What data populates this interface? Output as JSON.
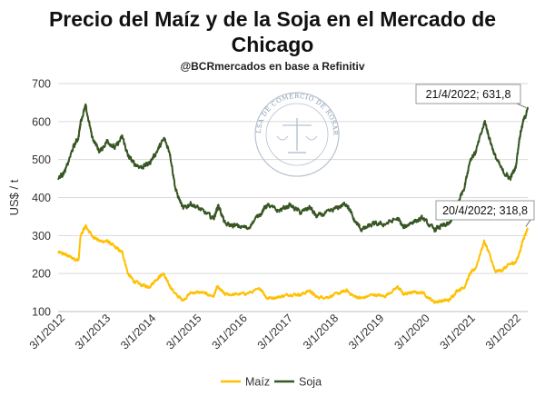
{
  "chart_data": {
    "type": "line",
    "title": "Precio del Maíz y de la Soja en el Mercado de Chicago",
    "title_lines": [
      "Precio del Maíz y de la Soja en el Mercado de",
      "Chicago"
    ],
    "subtitle": "@BCRmercados en base a Refinitiv",
    "ylabel": "US$ / t",
    "xlabel": "",
    "ylim": [
      100,
      700
    ],
    "yticks": [
      100,
      200,
      300,
      400,
      500,
      600,
      700
    ],
    "x_range": [
      "2012-01-03",
      "2022-04-21"
    ],
    "xticks": [
      "3/1/2012",
      "3/1/2013",
      "3/1/2014",
      "3/1/2015",
      "3/1/2016",
      "3/1/2017",
      "3/1/2018",
      "3/1/2019",
      "3/1/2020",
      "3/1/2021",
      "3/1/2022"
    ],
    "grid": "horizontal",
    "legend": "bottom",
    "watermark": "BOLSA DE COMERCIO DE ROSARIO",
    "series": [
      {
        "name": "Maíz",
        "color": "#FFC000",
        "x": [
          "2012-01-03",
          "2012-03-01",
          "2012-05-01",
          "2012-06-15",
          "2012-07-01",
          "2012-08-10",
          "2012-10-01",
          "2012-12-01",
          "2013-02-01",
          "2013-04-01",
          "2013-06-01",
          "2013-07-15",
          "2013-09-01",
          "2013-11-01",
          "2014-01-01",
          "2014-03-01",
          "2014-04-25",
          "2014-06-01",
          "2014-08-01",
          "2014-10-01",
          "2014-12-01",
          "2015-03-01",
          "2015-06-01",
          "2015-07-01",
          "2015-09-01",
          "2015-12-01",
          "2016-03-01",
          "2016-06-15",
          "2016-08-01",
          "2016-11-01",
          "2017-02-01",
          "2017-05-01",
          "2017-07-10",
          "2017-09-01",
          "2017-12-01",
          "2018-03-01",
          "2018-05-01",
          "2018-07-01",
          "2018-09-01",
          "2018-12-01",
          "2019-03-01",
          "2019-06-15",
          "2019-08-01",
          "2019-10-01",
          "2020-01-01",
          "2020-04-01",
          "2020-06-01",
          "2020-08-01",
          "2020-10-01",
          "2020-12-01",
          "2021-01-15",
          "2021-03-01",
          "2021-05-07",
          "2021-06-15",
          "2021-08-01",
          "2021-10-01",
          "2021-12-01",
          "2022-01-15",
          "2022-02-15",
          "2022-03-15",
          "2022-04-20"
        ],
        "values": [
          256,
          250,
          240,
          235,
          300,
          325,
          300,
          285,
          285,
          270,
          255,
          200,
          180,
          170,
          165,
          185,
          200,
          175,
          145,
          130,
          150,
          150,
          140,
          165,
          145,
          145,
          148,
          160,
          135,
          138,
          145,
          145,
          155,
          138,
          138,
          148,
          155,
          140,
          135,
          145,
          140,
          165,
          145,
          150,
          150,
          125,
          128,
          130,
          155,
          165,
          200,
          215,
          285,
          255,
          205,
          210,
          225,
          230,
          255,
          290,
          318.8
        ]
      },
      {
        "name": "Soja",
        "color": "#375623",
        "x": [
          "2012-01-03",
          "2012-03-01",
          "2012-05-01",
          "2012-06-15",
          "2012-07-01",
          "2012-08-10",
          "2012-10-01",
          "2012-12-01",
          "2013-02-01",
          "2013-04-01",
          "2013-06-01",
          "2013-07-15",
          "2013-09-01",
          "2013-11-01",
          "2014-01-01",
          "2014-03-01",
          "2014-05-01",
          "2014-06-15",
          "2014-08-01",
          "2014-10-01",
          "2014-12-01",
          "2015-03-01",
          "2015-06-01",
          "2015-07-10",
          "2015-09-01",
          "2015-12-01",
          "2016-03-01",
          "2016-06-15",
          "2016-08-01",
          "2016-11-01",
          "2017-02-01",
          "2017-05-01",
          "2017-07-10",
          "2017-09-01",
          "2017-12-01",
          "2018-03-01",
          "2018-05-01",
          "2018-07-01",
          "2018-09-01",
          "2018-12-01",
          "2019-03-01",
          "2019-06-15",
          "2019-08-01",
          "2019-10-01",
          "2020-01-01",
          "2020-04-01",
          "2020-06-01",
          "2020-08-01",
          "2020-10-01",
          "2020-12-01",
          "2021-01-15",
          "2021-03-01",
          "2021-05-12",
          "2021-06-15",
          "2021-08-01",
          "2021-10-01",
          "2021-12-01",
          "2022-01-15",
          "2022-02-15",
          "2022-03-15",
          "2022-04-21"
        ],
        "values": [
          450,
          470,
          530,
          560,
          600,
          640,
          560,
          520,
          550,
          530,
          560,
          510,
          490,
          480,
          490,
          520,
          555,
          520,
          420,
          370,
          385,
          365,
          345,
          380,
          330,
          325,
          320,
          360,
          380,
          365,
          380,
          360,
          375,
          350,
          360,
          375,
          385,
          340,
          315,
          330,
          330,
          345,
          320,
          335,
          345,
          315,
          325,
          330,
          380,
          430,
          500,
          520,
          600,
          560,
          510,
          470,
          450,
          480,
          560,
          600,
          631.8
        ]
      }
    ],
    "annotations": [
      {
        "text": "21/4/2022; 631,8",
        "series": "Soja",
        "x": "2022-04-21",
        "y": 631.8
      },
      {
        "text": "20/4/2022; 318,8",
        "series": "Maíz",
        "x": "2022-04-20",
        "y": 318.8
      }
    ]
  }
}
